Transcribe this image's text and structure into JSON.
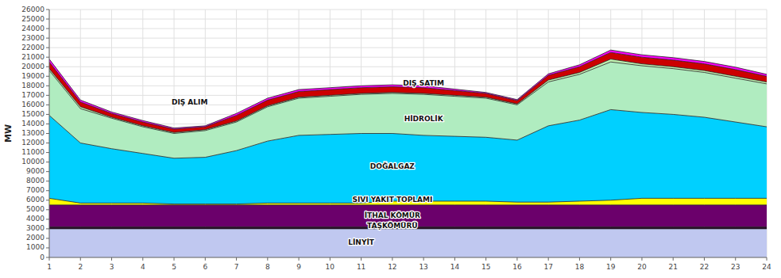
{
  "chart_data": {
    "type": "area",
    "stacked": true,
    "grid": true,
    "ylabel": "MW",
    "x": [
      1,
      2,
      3,
      4,
      5,
      6,
      7,
      8,
      9,
      10,
      11,
      12,
      13,
      14,
      15,
      16,
      17,
      18,
      19,
      20,
      21,
      22,
      23,
      24
    ],
    "xlim": [
      1,
      24
    ],
    "xticks": [
      1,
      2,
      3,
      4,
      5,
      6,
      7,
      8,
      9,
      10,
      11,
      12,
      13,
      14,
      15,
      16,
      17,
      18,
      19,
      20,
      21,
      22,
      23,
      24
    ],
    "ylim": [
      0,
      26000
    ],
    "yticks": [
      0,
      1000,
      2000,
      3000,
      4000,
      5000,
      6000,
      7000,
      8000,
      9000,
      10000,
      11000,
      12000,
      13000,
      14000,
      15000,
      16000,
      17000,
      18000,
      19000,
      20000,
      21000,
      22000,
      23000,
      24000,
      25000,
      26000
    ],
    "series": [
      {
        "color": "#c0c8f0",
        "values": [
          3000,
          3000,
          3000,
          3000,
          3000,
          3000,
          3000,
          3000,
          3000,
          3000,
          3000,
          3000,
          3000,
          3000,
          3000,
          3000,
          3000,
          3000,
          3000,
          3000,
          3000,
          3000,
          3000,
          3000
        ]
      },
      {
        "color": "#2a0a2a",
        "values": [
          200,
          200,
          200,
          200,
          200,
          200,
          200,
          200,
          200,
          200,
          200,
          200,
          200,
          200,
          200,
          200,
          200,
          200,
          200,
          200,
          200,
          200,
          200,
          200
        ]
      },
      {
        "color": "#6b006b",
        "values": [
          2300,
          2300,
          2300,
          2300,
          2300,
          2300,
          2300,
          2300,
          2300,
          2300,
          2300,
          2300,
          2300,
          2300,
          2300,
          2300,
          2300,
          2300,
          2300,
          2300,
          2300,
          2300,
          2300,
          2300
        ]
      },
      {
        "color": "#ffff00",
        "values": [
          700,
          200,
          200,
          200,
          100,
          100,
          100,
          200,
          200,
          200,
          200,
          400,
          400,
          400,
          400,
          300,
          300,
          400,
          500,
          700,
          700,
          700,
          700,
          700
        ]
      },
      {
        "color": "#00d0ff",
        "values": [
          8700,
          6300,
          5700,
          5200,
          4800,
          4900,
          5600,
          6500,
          7100,
          7200,
          7300,
          7100,
          6900,
          6800,
          6700,
          6500,
          8000,
          8500,
          9500,
          9000,
          8800,
          8500,
          8000,
          7500
        ]
      },
      {
        "color": "#b0ecc0",
        "values": [
          4700,
          3600,
          3200,
          2800,
          2600,
          2800,
          3000,
          3600,
          3900,
          4000,
          4100,
          4200,
          4300,
          4200,
          4100,
          3700,
          4600,
          4800,
          5000,
          4900,
          4800,
          4700,
          4600,
          4500
        ]
      },
      {
        "color": "#c0f0b0",
        "values": [
          200,
          200,
          100,
          100,
          100,
          100,
          100,
          100,
          100,
          100,
          100,
          100,
          100,
          100,
          100,
          100,
          200,
          200,
          300,
          200,
          200,
          200,
          200,
          200
        ]
      },
      {
        "color": "#cc0000",
        "values": [
          700,
          500,
          400,
          400,
          350,
          300,
          600,
          600,
          600,
          600,
          600,
          600,
          600,
          500,
          400,
          350,
          500,
          600,
          700,
          700,
          700,
          700,
          700,
          600
        ]
      },
      {
        "color": "#ff00ff",
        "values": [
          300,
          200,
          150,
          150,
          120,
          100,
          200,
          200,
          200,
          200,
          200,
          200,
          200,
          150,
          100,
          100,
          150,
          200,
          250,
          250,
          250,
          250,
          250,
          200
        ]
      }
    ],
    "annotations": [
      {
        "text": "LİNYİT",
        "x": 11,
        "y": 1500
      },
      {
        "text": "TAŞKÖMÜRÜ",
        "x": 12,
        "y": 3300
      },
      {
        "text": "İTHAL KÖMÜR",
        "x": 12,
        "y": 4400
      },
      {
        "text": "SIVI YAKIT TOPLAMI",
        "x": 12,
        "y": 6000
      },
      {
        "text": "DOĞALGAZ",
        "x": 12,
        "y": 9500
      },
      {
        "text": "HİDROLİK",
        "x": 13,
        "y": 14500
      },
      {
        "text": "DIŞ ALIM",
        "x": 5.5,
        "y": 16200
      },
      {
        "text": "DIŞ SATIM",
        "x": 13,
        "y": 18200
      }
    ]
  }
}
